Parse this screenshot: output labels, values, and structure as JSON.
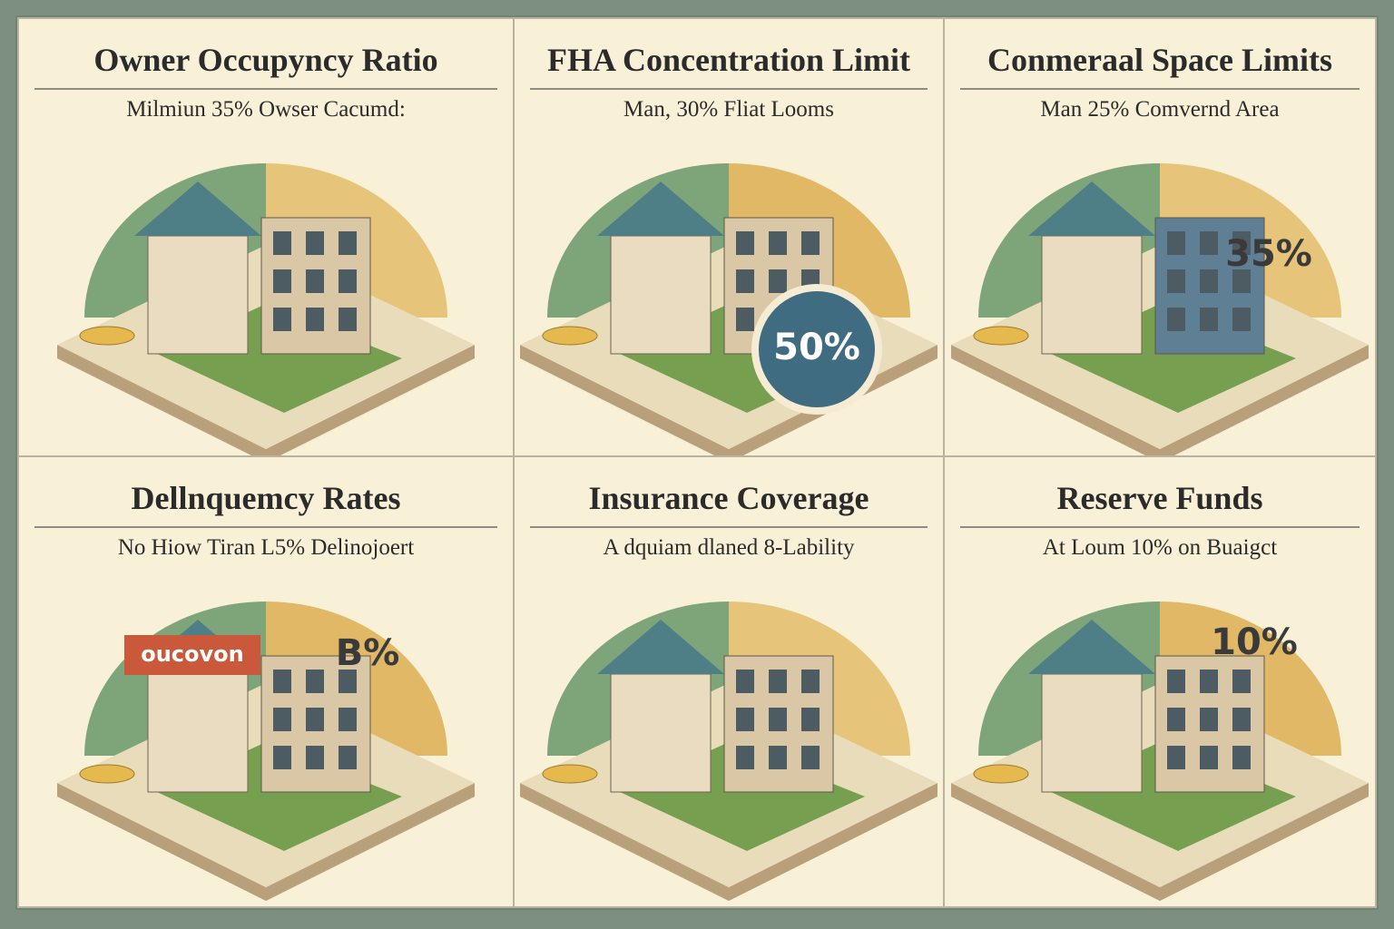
{
  "panels": [
    {
      "title": "Owner Occupyncy Ratio",
      "subtitle": "Milmiun 35% Owser Cacumd:"
    },
    {
      "title": "FHA Concentration Limit",
      "subtitle": "Man, 30% Fliat Looms",
      "labels": [
        "50%"
      ]
    },
    {
      "title": "Conmeraal Space Limits",
      "subtitle": "Man 25% Comvernd Area",
      "labels": [
        "35%"
      ]
    },
    {
      "title": "Dellnquemcy Rates",
      "subtitle": "No Hiow Tiran L5% Delinojoert",
      "labels": [
        "oucovon",
        "B%"
      ]
    },
    {
      "title": "Insurance Coverage",
      "subtitle": "A dquiam dlaned 8-Lability"
    },
    {
      "title": "Reserve Funds",
      "subtitle": "At Loum 10% on Buaigct",
      "labels": [
        "10%"
      ]
    }
  ]
}
